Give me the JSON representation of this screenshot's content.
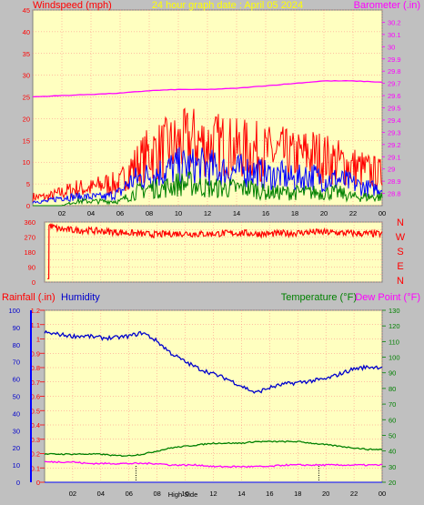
{
  "header": {
    "windspeed_label": "Windspeed (mph)",
    "title": "24 hour graph date : April 05 2024",
    "barometer_label": "Barometer (.in)"
  },
  "labels": {
    "rainfall": "Rainfall (.in)",
    "humidity": "Humidity",
    "temperature": "Temperature (°F)",
    "dewpoint": "Dew Point (°F)",
    "high_side": "High Side"
  },
  "colors": {
    "background": "#c0c0c0",
    "plot_bg": "#ffffc0",
    "wind_gust": "#ff0000",
    "wind_avg": "#0000ff",
    "wind_low": "#008000",
    "barometer": "#ff00ff",
    "direction": "#ff0000",
    "humidity": "#0000cc",
    "temperature": "#008000",
    "dewpoint": "#ff00ff",
    "rain": "#0000ff",
    "grid": "#ff8080"
  },
  "chart_data": [
    {
      "type": "line",
      "name": "wind-barometer",
      "x_ticks": [
        "02",
        "04",
        "06",
        "08",
        "10",
        "12",
        "14",
        "16",
        "18",
        "20",
        "22",
        "00"
      ],
      "y_left_ticks": [
        "0",
        "5",
        "10",
        "15",
        "20",
        "25",
        "30",
        "35",
        "40",
        "45"
      ],
      "y_right_ticks": [
        "28.8",
        "28.9",
        "29",
        "29.1",
        "29.2",
        "29.3",
        "29.4",
        "29.5",
        "29.6",
        "29.7",
        "29.8",
        "29.9",
        "30",
        "30.1",
        "30.2"
      ],
      "ylim_left": [
        0,
        45
      ],
      "ylim_right": [
        28.7,
        30.3
      ],
      "series": [
        {
          "name": "Windspeed gust",
          "x": [
            0,
            1,
            2,
            3,
            4,
            5,
            6,
            6.5,
            7,
            8,
            9,
            10,
            11,
            12,
            13,
            14,
            15,
            16,
            17,
            18,
            19,
            20,
            21,
            22,
            23,
            24
          ],
          "values": [
            2,
            2,
            3,
            4,
            4,
            5,
            5,
            8,
            9,
            12,
            13,
            14,
            15,
            14,
            14,
            13,
            13,
            12,
            12,
            11,
            12,
            11,
            10,
            9,
            8,
            7
          ]
        },
        {
          "name": "Windspeed avg",
          "x": [
            0,
            1,
            2,
            3,
            4,
            5,
            6,
            6.5,
            7,
            8,
            9,
            10,
            11,
            12,
            13,
            14,
            15,
            16,
            17,
            18,
            19,
            20,
            21,
            22,
            23,
            24
          ],
          "values": [
            1,
            1,
            2,
            2,
            2,
            2,
            3,
            5,
            6,
            7,
            8,
            9,
            9,
            9,
            8,
            8,
            8,
            7,
            7,
            6,
            7,
            6,
            6,
            5,
            4,
            4
          ]
        },
        {
          "name": "Windspeed low",
          "x": [
            0,
            1,
            2,
            3,
            4,
            5,
            6,
            6.5,
            7,
            8,
            9,
            10,
            11,
            12,
            13,
            14,
            15,
            16,
            17,
            18,
            19,
            20,
            21,
            22,
            23,
            24
          ],
          "values": [
            0,
            0,
            0,
            1,
            1,
            1,
            1,
            2,
            3,
            4,
            4,
            5,
            5,
            4,
            4,
            4,
            4,
            3,
            3,
            3,
            3,
            3,
            3,
            2,
            2,
            2
          ]
        },
        {
          "name": "Barometer",
          "x": [
            0,
            2,
            4,
            6,
            8,
            10,
            12,
            14,
            16,
            18,
            20,
            22,
            24
          ],
          "values": [
            29.59,
            29.6,
            29.61,
            29.62,
            29.64,
            29.65,
            29.65,
            29.66,
            29.68,
            29.7,
            29.72,
            29.72,
            29.71
          ]
        }
      ]
    },
    {
      "type": "line",
      "name": "wind-direction",
      "x_ticks": [
        "02",
        "04",
        "06",
        "08",
        "10",
        "12",
        "14",
        "16",
        "18",
        "20",
        "22",
        "00"
      ],
      "y_ticks": [
        "0",
        "45",
        "90",
        "135",
        "180",
        "225",
        "270",
        "315",
        "360"
      ],
      "right_labels": [
        "N",
        "W",
        "S",
        "E",
        "N"
      ],
      "ylim": [
        0,
        360
      ],
      "series": [
        {
          "name": "Wind direction",
          "x": [
            0,
            0.3,
            0.35,
            1,
            2,
            3,
            4,
            5,
            6,
            7,
            8,
            9,
            10,
            11,
            12,
            13,
            14,
            15,
            16,
            17,
            18,
            19,
            20,
            21,
            22,
            23,
            24
          ],
          "values": [
            20,
            20,
            340,
            318,
            312,
            310,
            305,
            300,
            295,
            288,
            285,
            290,
            292,
            288,
            290,
            292,
            295,
            290,
            288,
            292,
            295,
            300,
            298,
            295,
            292,
            290,
            288
          ]
        }
      ]
    },
    {
      "type": "line",
      "name": "humidity-temperature",
      "x_ticks": [
        "02",
        "04",
        "06",
        "08",
        "10",
        "12",
        "14",
        "16",
        "18",
        "20",
        "22",
        "00"
      ],
      "y_humidity_ticks": [
        "0",
        "10",
        "20",
        "30",
        "40",
        "50",
        "60",
        "70",
        "80",
        "90",
        "100"
      ],
      "y_rain_ticks": [
        "0",
        "0.1",
        "0.2",
        "0.3",
        "0.4",
        "0.5",
        "0.6",
        "0.7",
        "0.8",
        "0.9",
        "1",
        "1.1",
        "1.2"
      ],
      "y_temp_ticks": [
        "20",
        "30",
        "40",
        "50",
        "60",
        "70",
        "80",
        "90",
        "100",
        "110",
        "120",
        "130"
      ],
      "ylim_humidity": [
        0,
        100
      ],
      "ylim_temp": [
        20,
        130
      ],
      "series": [
        {
          "name": "Humidity",
          "x": [
            0,
            1,
            2,
            3,
            4,
            5,
            6,
            7,
            8,
            9,
            10,
            11,
            12,
            13,
            14,
            15,
            16,
            17,
            18,
            19,
            20,
            21,
            22,
            23,
            24
          ],
          "values": [
            87,
            86,
            85,
            85,
            84,
            84,
            85,
            87,
            82,
            75,
            70,
            66,
            63,
            60,
            56,
            52,
            55,
            57,
            58,
            59,
            60,
            63,
            66,
            67,
            67
          ]
        },
        {
          "name": "Temperature",
          "x": [
            0,
            1,
            2,
            3,
            4,
            5,
            6,
            7,
            8,
            9,
            10,
            11,
            12,
            13,
            14,
            15,
            16,
            17,
            18,
            19,
            20,
            21,
            22,
            23,
            24
          ],
          "values": [
            38,
            38,
            38,
            38,
            38,
            37,
            37,
            38,
            40,
            42,
            43,
            44,
            45,
            45,
            45,
            46,
            46,
            46,
            46,
            45,
            44,
            43,
            42,
            41,
            41
          ]
        },
        {
          "name": "Dew Point",
          "x": [
            0,
            1,
            2,
            3,
            4,
            5,
            6,
            7,
            8,
            9,
            10,
            11,
            12,
            13,
            14,
            15,
            16,
            17,
            18,
            19,
            20,
            21,
            22,
            23,
            24
          ],
          "values": [
            33,
            33,
            33,
            32,
            32,
            32,
            32,
            32,
            32,
            31,
            31,
            31,
            30,
            30,
            30,
            30,
            30,
            31,
            31,
            31,
            31,
            31,
            31,
            31,
            31
          ]
        }
      ],
      "rain_today": 0,
      "markers_x": [
        6.5,
        19.5
      ]
    }
  ]
}
